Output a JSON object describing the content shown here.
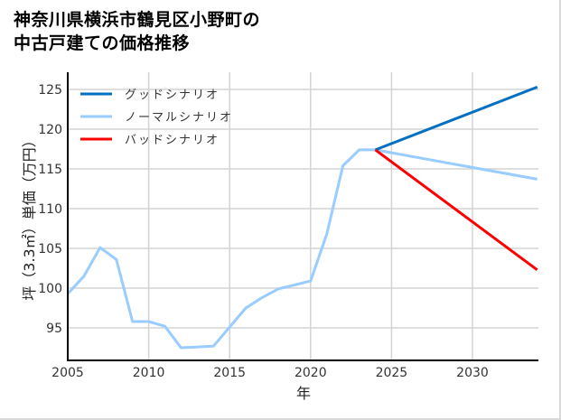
{
  "title": {
    "line1": "神奈川県横浜市鶴見区小野町の",
    "line2": "中古戸建ての価格推移"
  },
  "colors": {
    "good": "#0070c0",
    "normal": "#99ccff",
    "bad": "#ff0000",
    "grid": "#d3d3d3",
    "axis": "#000000"
  },
  "chart_data": {
    "type": "line",
    "title": "神奈川県横浜市鶴見区小野町の中古戸建ての価格推移",
    "xlabel": "年",
    "ylabel": "坪（3.3㎡）単価（万円）",
    "xlim": [
      2005,
      2034
    ],
    "ylim": [
      91,
      126.5
    ],
    "grid": true,
    "legend_position": "upper left",
    "x_ticks": [
      2005,
      2010,
      2015,
      2020,
      2025,
      2030
    ],
    "y_ticks": [
      95,
      100,
      105,
      110,
      115,
      120,
      125
    ],
    "series": [
      {
        "name": "グッドシナリオ",
        "color": "#0070c0",
        "x": [
          2024,
          2034
        ],
        "values": [
          117.4,
          125.3
        ]
      },
      {
        "name": "ノーマルシナリオ",
        "color": "#99ccff",
        "x": [
          2005,
          2006,
          2007,
          2008,
          2009,
          2010,
          2011,
          2012,
          2013,
          2014,
          2015,
          2016,
          2017,
          2018,
          2019,
          2020,
          2021,
          2022,
          2023,
          2024,
          2034
        ],
        "values": [
          99.3,
          101.5,
          105.1,
          103.6,
          95.8,
          95.8,
          95.2,
          92.5,
          92.6,
          92.7,
          95.1,
          97.5,
          98.8,
          99.9,
          100.4,
          100.9,
          106.8,
          115.4,
          117.4,
          117.4,
          113.7
        ]
      },
      {
        "name": "バッドシナリオ",
        "color": "#ff0000",
        "x": [
          2024,
          2034
        ],
        "values": [
          117.4,
          102.3
        ]
      }
    ]
  }
}
